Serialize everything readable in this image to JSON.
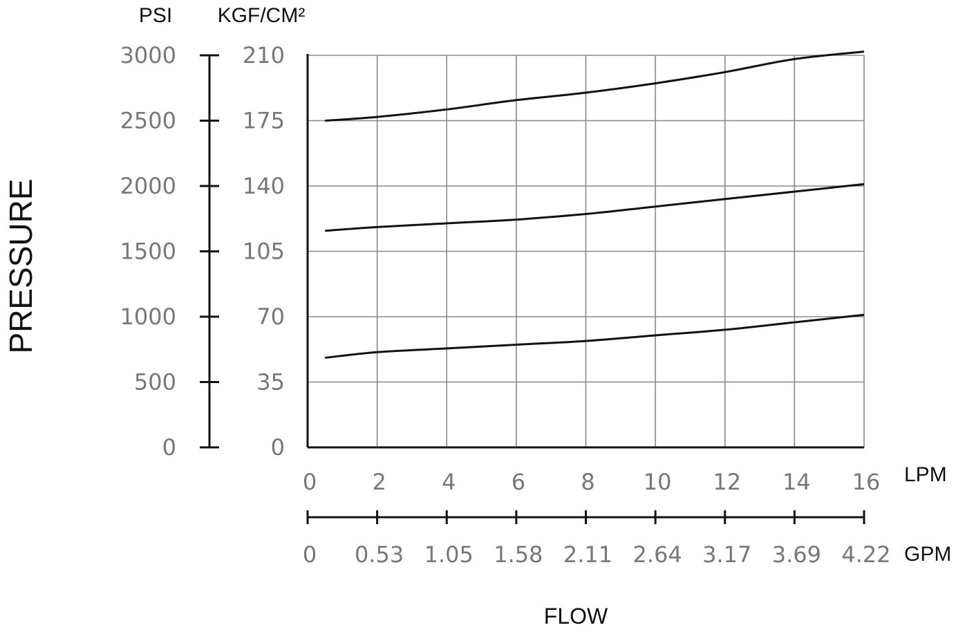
{
  "chart_data": {
    "type": "line",
    "title": "",
    "ylabel": "PRESSURE",
    "xlabel": "FLOW",
    "y_units": {
      "primary": "PSI",
      "secondary": "KGF/CM²"
    },
    "x_units": {
      "primary": "LPM",
      "secondary": "GPM"
    },
    "xlim": [
      0,
      16
    ],
    "ylim": [
      0,
      210
    ],
    "grid": true,
    "x_ticks_lpm": [
      "0",
      "2",
      "4",
      "6",
      "8",
      "10",
      "12",
      "14",
      "16"
    ],
    "x_ticks_gpm": [
      "0",
      "0.53",
      "1.05",
      "1.58",
      "2.11",
      "2.64",
      "3.17",
      "3.69",
      "4.22"
    ],
    "y_ticks_kgf": [
      "0",
      "35",
      "70",
      "105",
      "140",
      "175",
      "210"
    ],
    "y_ticks_psi": [
      "0",
      "500",
      "1000",
      "1500",
      "2000",
      "2500",
      "3000"
    ],
    "series": [
      {
        "x": [
          0.5,
          2,
          4,
          6,
          8,
          10,
          12,
          14,
          16
        ],
        "values": [
          175,
          177,
          181,
          186,
          190,
          195,
          201,
          208,
          212
        ]
      },
      {
        "x": [
          0.5,
          2,
          4,
          6,
          8,
          10,
          12,
          14,
          16
        ],
        "values": [
          116,
          118,
          120,
          122,
          125,
          129,
          133,
          137,
          141
        ]
      },
      {
        "x": [
          0.5,
          2,
          4,
          6,
          8,
          10,
          12,
          14,
          16
        ],
        "values": [
          48,
          51,
          53,
          55,
          57,
          60,
          63,
          67,
          71
        ]
      }
    ]
  }
}
